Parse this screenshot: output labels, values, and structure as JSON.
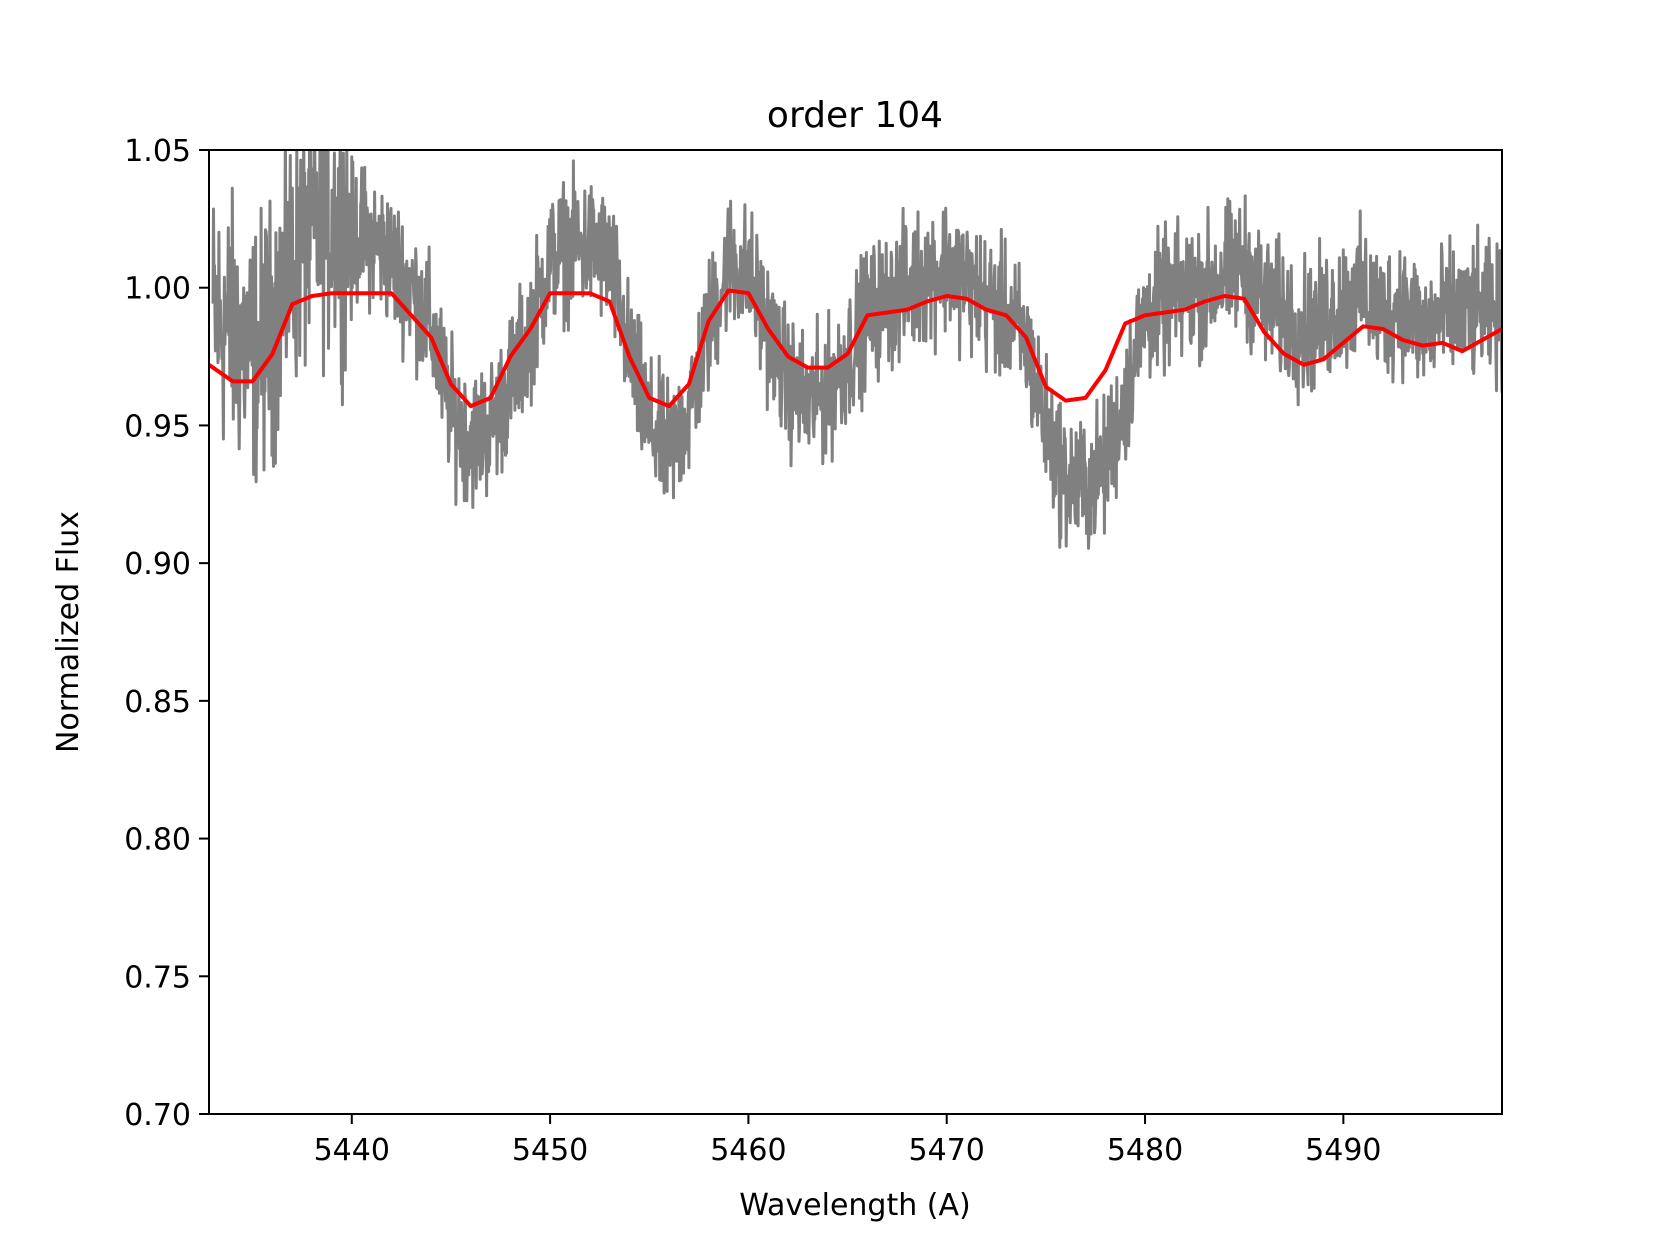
{
  "chart_data": {
    "type": "line",
    "title": "order 104",
    "xlabel": "Wavelength (A)",
    "ylabel": "Normalized Flux",
    "xlim": [
      5432.8,
      5498.0
    ],
    "ylim": [
      0.7,
      1.05
    ],
    "xticks": [
      5440,
      5450,
      5460,
      5470,
      5480,
      5490
    ],
    "yticks": [
      0.7,
      0.75,
      0.8,
      0.85,
      0.9,
      0.95,
      1.0,
      1.05
    ],
    "ytick_labels": [
      "0.70",
      "0.75",
      "0.80",
      "0.85",
      "0.90",
      "0.95",
      "1.00",
      "1.05"
    ],
    "grid": false,
    "series": [
      {
        "color": "#808080",
        "x": [
          5433.0,
          5434.0,
          5435.0,
          5436.0,
          5437.0,
          5438.0,
          5439.0,
          5440.0,
          5441.0,
          5442.0,
          5443.0,
          5444.0,
          5445.0,
          5446.0,
          5447.0,
          5448.0,
          5449.0,
          5450.0,
          5451.0,
          5452.0,
          5453.0,
          5454.0,
          5455.0,
          5456.0,
          5457.0,
          5458.0,
          5459.0,
          5460.0,
          5461.0,
          5462.0,
          5463.0,
          5464.0,
          5465.0,
          5466.0,
          5467.0,
          5468.0,
          5469.0,
          5470.0,
          5471.0,
          5472.0,
          5473.0,
          5474.0,
          5475.0,
          5476.0,
          5477.0,
          5478.0,
          5479.0,
          5480.0,
          5481.0,
          5482.0,
          5483.0,
          5484.0,
          5485.0,
          5486.0,
          5487.0,
          5488.0,
          5489.0,
          5490.0,
          5491.0,
          5492.0,
          5493.0,
          5494.0,
          5495.0,
          5496.0,
          5497.0,
          5498.0
        ],
        "y": [
          0.99,
          0.985,
          0.975,
          0.985,
          1.01,
          1.02,
          1.025,
          1.02,
          1.018,
          1.01,
          1.0,
          0.985,
          0.955,
          0.945,
          0.95,
          0.965,
          0.985,
          1.01,
          1.015,
          1.015,
          1.01,
          0.975,
          0.95,
          0.94,
          0.955,
          0.985,
          1.01,
          1.005,
          0.985,
          0.965,
          0.958,
          0.962,
          0.975,
          0.99,
          0.995,
          1.0,
          1.005,
          1.008,
          1.002,
          0.995,
          0.99,
          0.98,
          0.95,
          0.93,
          0.928,
          0.935,
          0.96,
          0.99,
          0.995,
          0.998,
          1.0,
          1.005,
          1.008,
          0.995,
          0.99,
          0.985,
          0.988,
          0.995,
          0.998,
          0.99,
          0.995,
          0.985,
          0.99,
          0.99,
          0.992,
          0.988
        ],
        "noise_amplitude": 0.012
      },
      {
        "color": "#ff0000",
        "x": [
          5432.8,
          5434.0,
          5435.0,
          5436.0,
          5437.0,
          5438.0,
          5439.0,
          5440.0,
          5441.0,
          5442.0,
          5443.0,
          5444.0,
          5445.0,
          5446.0,
          5447.0,
          5448.0,
          5449.0,
          5450.0,
          5451.0,
          5452.0,
          5453.0,
          5454.0,
          5455.0,
          5456.0,
          5457.0,
          5458.0,
          5459.0,
          5460.0,
          5461.0,
          5462.0,
          5463.0,
          5464.0,
          5465.0,
          5466.0,
          5467.0,
          5468.0,
          5469.0,
          5470.0,
          5471.0,
          5472.0,
          5473.0,
          5474.0,
          5475.0,
          5476.0,
          5477.0,
          5478.0,
          5479.0,
          5480.0,
          5481.0,
          5482.0,
          5483.0,
          5484.0,
          5485.0,
          5486.0,
          5487.0,
          5488.0,
          5489.0,
          5490.0,
          5491.0,
          5492.0,
          5493.0,
          5494.0,
          5495.0,
          5496.0,
          5497.0,
          5498.0
        ],
        "y": [
          0.972,
          0.966,
          0.966,
          0.976,
          0.994,
          0.997,
          0.998,
          0.998,
          0.998,
          0.998,
          0.99,
          0.982,
          0.965,
          0.957,
          0.96,
          0.975,
          0.985,
          0.998,
          0.998,
          0.998,
          0.995,
          0.975,
          0.96,
          0.957,
          0.965,
          0.988,
          0.999,
          0.998,
          0.985,
          0.975,
          0.971,
          0.971,
          0.976,
          0.99,
          0.991,
          0.992,
          0.995,
          0.997,
          0.996,
          0.992,
          0.99,
          0.982,
          0.964,
          0.959,
          0.96,
          0.97,
          0.987,
          0.99,
          0.991,
          0.992,
          0.995,
          0.997,
          0.996,
          0.984,
          0.976,
          0.972,
          0.974,
          0.98,
          0.986,
          0.985,
          0.981,
          0.979,
          0.98,
          0.977,
          0.981,
          0.985
        ]
      }
    ]
  }
}
